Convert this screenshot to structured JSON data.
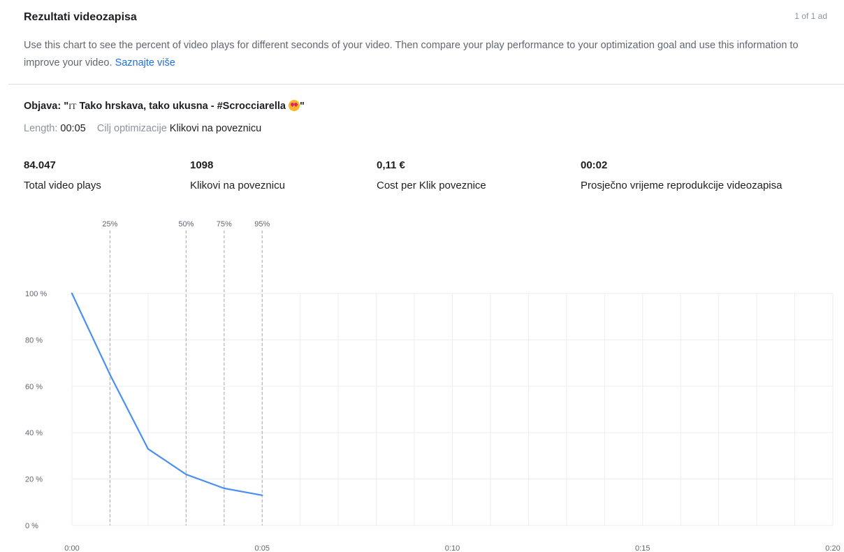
{
  "header": {
    "title": "Rezultati videozapisa",
    "ad_count": "1 of 1 ad",
    "description": "Use this chart to see the percent of video plays for different seconds of your video. Then compare your play performance to your optimization goal and use this information to improve your video.",
    "learn_more": "Saznajte više"
  },
  "post": {
    "prefix": "Objava: \"",
    "badge": "IT",
    "title": " Tako hrskava, tako ukusna - #Scrocciarella ",
    "suffix": "\"",
    "emoji_icon": "heart-eyes-emoji-icon",
    "length_label": "Length:",
    "length_value": "00:05",
    "goal_label": "Cilj optimizacije",
    "goal_value": "Klikovi na poveznicu"
  },
  "stats": [
    {
      "value": "84.047",
      "label": "Total video plays"
    },
    {
      "value": "1098",
      "label": "Klikovi na poveznicu"
    },
    {
      "value": "0,11 €",
      "label": "Cost per Klik poveznice"
    },
    {
      "value": "00:02",
      "label": "Prosječno vrijeme reprodukcije videozapisa"
    }
  ],
  "chart_data": {
    "type": "line",
    "x_unit": "seconds",
    "xlim": [
      0,
      20
    ],
    "ylim": [
      0,
      100
    ],
    "x_ticks": [
      0,
      5,
      10,
      15,
      20
    ],
    "x_tick_labels": [
      "0:00",
      "0:05",
      "0:10",
      "0:15",
      "0:20"
    ],
    "y_ticks": [
      0,
      20,
      40,
      60,
      80,
      100
    ],
    "y_tick_labels": [
      "0 %",
      "20 %",
      "40 %",
      "60 %",
      "80 %",
      "100 %"
    ],
    "grid": true,
    "series": [
      {
        "x": [
          0,
          1,
          2,
          3,
          4,
          5
        ],
        "y": [
          100,
          65,
          33,
          22,
          16,
          13
        ],
        "color": "#4a90f0"
      }
    ],
    "markers": [
      {
        "x": 1,
        "label": "25%"
      },
      {
        "x": 3,
        "label": "50%"
      },
      {
        "x": 4,
        "label": "75%"
      },
      {
        "x": 5,
        "label": "95%"
      }
    ],
    "colors": {
      "line": "#4a90f0",
      "grid": "#ebedf0",
      "marker": "#b0b3b8",
      "tick": "#606770"
    }
  }
}
